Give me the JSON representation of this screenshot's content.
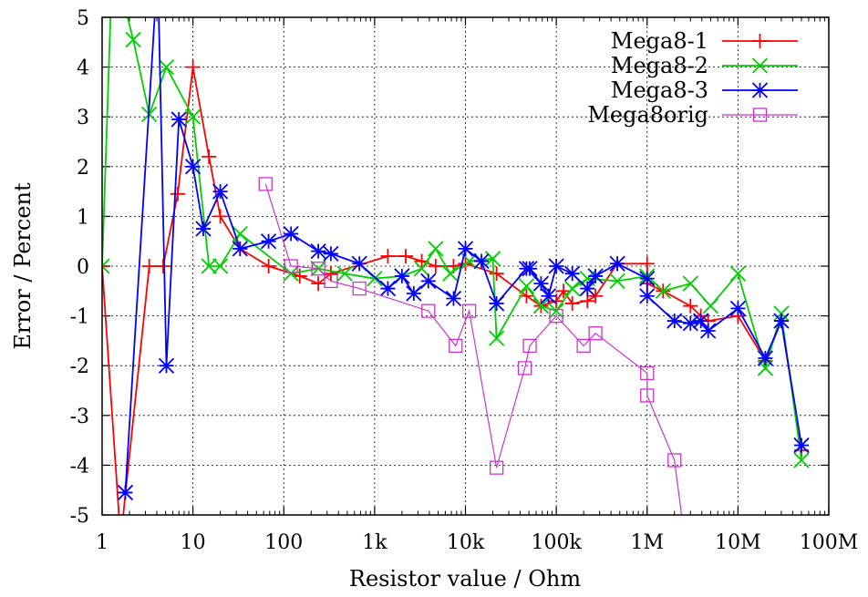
{
  "chart_data": {
    "type": "line",
    "xlabel": "Resistor value / Ohm",
    "ylabel": "Error / Percent",
    "x_scale": "log",
    "xlim": [
      1,
      100000000
    ],
    "ylim": [
      -5,
      5
    ],
    "x_ticks": [
      {
        "value": 1,
        "label": "1"
      },
      {
        "value": 10,
        "label": "10"
      },
      {
        "value": 100,
        "label": "100"
      },
      {
        "value": 1000,
        "label": "1k"
      },
      {
        "value": 10000,
        "label": "10k"
      },
      {
        "value": 100000,
        "label": "100k"
      },
      {
        "value": 1000000,
        "label": "1M"
      },
      {
        "value": 10000000,
        "label": "10M"
      },
      {
        "value": 100000000,
        "label": "100M"
      }
    ],
    "y_ticks": [
      {
        "value": 5,
        "label": "5"
      },
      {
        "value": 4,
        "label": "4"
      },
      {
        "value": 3,
        "label": "3"
      },
      {
        "value": 2,
        "label": "2"
      },
      {
        "value": 1,
        "label": "1"
      },
      {
        "value": 0,
        "label": "0"
      },
      {
        "value": -1,
        "label": "-1"
      },
      {
        "value": -2,
        "label": "-2"
      },
      {
        "value": -3,
        "label": "-3"
      },
      {
        "value": -4,
        "label": "-4"
      },
      {
        "value": -5,
        "label": "-5"
      }
    ],
    "grid": true,
    "legend_position": "top-right",
    "series": [
      {
        "name": "Mega8-1",
        "color": "#ff0000",
        "marker": "plus",
        "points": [
          [
            1,
            0
          ],
          [
            1.6,
            -5.5
          ],
          [
            3.3,
            0
          ],
          [
            4.7,
            0
          ],
          [
            6.8,
            1.45
          ],
          [
            10,
            4.0
          ],
          [
            15,
            2.2
          ],
          [
            20,
            1.0
          ],
          [
            33,
            0.35
          ],
          [
            68,
            0
          ],
          [
            150,
            -0.2
          ],
          [
            240,
            -0.35
          ],
          [
            330,
            -0.15
          ],
          [
            1400,
            0.2
          ],
          [
            2200,
            0.2
          ],
          [
            3300,
            0.1
          ],
          [
            4700,
            0
          ],
          [
            7400,
            0
          ],
          [
            10000,
            0.05
          ],
          [
            22000,
            -0.15
          ],
          [
            47000,
            -0.6
          ],
          [
            68000,
            -0.8
          ],
          [
            100000,
            -0.7
          ],
          [
            120000,
            -0.5
          ],
          [
            150000,
            -0.75
          ],
          [
            220000,
            -0.7
          ],
          [
            270000,
            -0.6
          ],
          [
            470000,
            0.05
          ],
          [
            1000000,
            0.05
          ],
          [
            1000000,
            -0.35
          ],
          [
            1500000,
            -0.5
          ],
          [
            3000000,
            -0.8
          ],
          [
            3900000,
            -1.0
          ],
          [
            4700000,
            -1.1
          ],
          [
            10000000,
            -1.0
          ],
          [
            20000000,
            -1.9
          ],
          [
            30000000,
            -1.1
          ],
          [
            50000000,
            -3.7
          ]
        ]
      },
      {
        "name": "Mega8-2",
        "color": "#00d000",
        "marker": "x",
        "points": [
          [
            1,
            0
          ],
          [
            1.3,
            6.2
          ],
          [
            2.2,
            4.55
          ],
          [
            3.3,
            3.05
          ],
          [
            5.1,
            4.0
          ],
          [
            10,
            3.0
          ],
          [
            15,
            0
          ],
          [
            20,
            0
          ],
          [
            33,
            0.65
          ],
          [
            120,
            -0.15
          ],
          [
            240,
            -0.05
          ],
          [
            470,
            -0.15
          ],
          [
            1000,
            -0.25
          ],
          [
            2000,
            -0.2
          ],
          [
            3300,
            -0.05
          ],
          [
            4700,
            0.35
          ],
          [
            6800,
            -0.15
          ],
          [
            11000,
            0.1
          ],
          [
            20000,
            0.15
          ],
          [
            22000,
            -1.45
          ],
          [
            47000,
            -0.4
          ],
          [
            68000,
            -0.8
          ],
          [
            100000,
            -0.9
          ],
          [
            150000,
            -0.45
          ],
          [
            220000,
            -0.25
          ],
          [
            470000,
            -0.3
          ],
          [
            1000000,
            -0.2
          ],
          [
            1500000,
            -0.5
          ],
          [
            3000000,
            -0.35
          ],
          [
            5000000,
            -0.8
          ],
          [
            10000000,
            -0.15
          ],
          [
            20000000,
            -2.05
          ],
          [
            30000000,
            -0.95
          ],
          [
            50000000,
            -3.9
          ]
        ]
      },
      {
        "name": "Mega8-3",
        "color": "#0000ff",
        "marker": "star",
        "points": [
          [
            1.8,
            -4.55
          ],
          [
            4.1,
            6.0
          ],
          [
            5.1,
            -2.0
          ],
          [
            7,
            2.95
          ],
          [
            10,
            2.0
          ],
          [
            13,
            0.75
          ],
          [
            20,
            1.5
          ],
          [
            33,
            0.35
          ],
          [
            68,
            0.5
          ],
          [
            120,
            0.65
          ],
          [
            240,
            0.3
          ],
          [
            330,
            0.25
          ],
          [
            680,
            0.05
          ],
          [
            1400,
            -0.45
          ],
          [
            2000,
            -0.2
          ],
          [
            2700,
            -0.55
          ],
          [
            3900,
            -0.3
          ],
          [
            7400,
            -0.65
          ],
          [
            10000,
            0.35
          ],
          [
            15000,
            0.1
          ],
          [
            22000,
            -0.75
          ],
          [
            47000,
            -0.05
          ],
          [
            51000,
            -0.05
          ],
          [
            68000,
            -0.35
          ],
          [
            82000,
            -0.6
          ],
          [
            100000,
            0
          ],
          [
            150000,
            -0.15
          ],
          [
            220000,
            -0.45
          ],
          [
            270000,
            -0.2
          ],
          [
            470000,
            0.05
          ],
          [
            1000000,
            -0.25
          ],
          [
            1000000,
            -0.6
          ],
          [
            2000000,
            -1.1
          ],
          [
            3000000,
            -1.15
          ],
          [
            3900000,
            -1.1
          ],
          [
            4700000,
            -1.3
          ],
          [
            10000000,
            -0.85
          ],
          [
            20000000,
            -1.85
          ],
          [
            30000000,
            -1.1
          ],
          [
            50000000,
            -3.6
          ]
        ]
      },
      {
        "name": "Mega8orig",
        "color": "#cc33cc",
        "marker": "square",
        "points": [
          [
            63,
            1.65
          ],
          [
            120,
            0
          ],
          [
            240,
            -0.05
          ],
          [
            330,
            -0.3
          ],
          [
            680,
            -0.45
          ],
          [
            3900,
            -0.9
          ],
          [
            7800,
            -1.6
          ],
          [
            11000,
            -0.9
          ],
          [
            22000,
            -4.05
          ],
          [
            45000,
            -2.05
          ],
          [
            51000,
            -1.6
          ],
          [
            100000,
            -1.0
          ],
          [
            200000,
            -1.6
          ],
          [
            270000,
            -1.35
          ],
          [
            1000000,
            -2.15
          ],
          [
            1000000,
            -2.6
          ],
          [
            2000000,
            -3.9
          ],
          [
            2600000,
            -5.5
          ]
        ]
      }
    ]
  }
}
